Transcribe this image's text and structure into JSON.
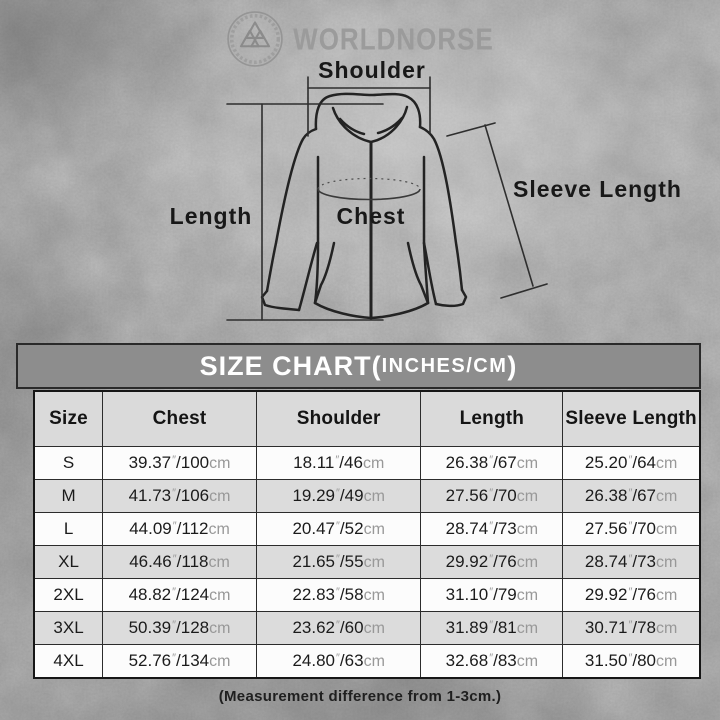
{
  "brand": {
    "name": "WORLDNORSE",
    "logo": "valknut-icon"
  },
  "diagram": {
    "labels": {
      "shoulder": "Shoulder",
      "length": "Length",
      "chest": "Chest",
      "sleeve_length": "Sleeve Length"
    }
  },
  "size_chart": {
    "title_main": "SIZE CHART(",
    "title_sub": "INCHES/CM",
    "title_close": ")",
    "columns": [
      "Size",
      "Chest",
      "Shoulder",
      "Length",
      "Sleeve Length"
    ],
    "inch_mark": "″",
    "cm_suffix": "cm",
    "rows": [
      {
        "size": "S",
        "measures": [
          {
            "in": "39.37",
            "cm": "100"
          },
          {
            "in": "18.11",
            "cm": "46"
          },
          {
            "in": "26.38",
            "cm": "67"
          },
          {
            "in": "25.20",
            "cm": "64"
          }
        ]
      },
      {
        "size": "M",
        "measures": [
          {
            "in": "41.73",
            "cm": "106"
          },
          {
            "in": "19.29",
            "cm": "49"
          },
          {
            "in": "27.56",
            "cm": "70"
          },
          {
            "in": "26.38",
            "cm": "67"
          }
        ]
      },
      {
        "size": "L",
        "measures": [
          {
            "in": "44.09",
            "cm": "112"
          },
          {
            "in": "20.47",
            "cm": "52"
          },
          {
            "in": "28.74",
            "cm": "73"
          },
          {
            "in": "27.56",
            "cm": "70"
          }
        ]
      },
      {
        "size": "XL",
        "measures": [
          {
            "in": "46.46",
            "cm": "118"
          },
          {
            "in": "21.65",
            "cm": "55"
          },
          {
            "in": "29.92",
            "cm": "76"
          },
          {
            "in": "28.74",
            "cm": "73"
          }
        ]
      },
      {
        "size": "2XL",
        "measures": [
          {
            "in": "48.82",
            "cm": "124"
          },
          {
            "in": "22.83",
            "cm": "58"
          },
          {
            "in": "31.10",
            "cm": "79"
          },
          {
            "in": "29.92",
            "cm": "76"
          }
        ]
      },
      {
        "size": "3XL",
        "measures": [
          {
            "in": "50.39",
            "cm": "128"
          },
          {
            "in": "23.62",
            "cm": "60"
          },
          {
            "in": "31.89",
            "cm": "81"
          },
          {
            "in": "30.71",
            "cm": "78"
          }
        ]
      },
      {
        "size": "4XL",
        "measures": [
          {
            "in": "52.76",
            "cm": "134"
          },
          {
            "in": "24.80",
            "cm": "63"
          },
          {
            "in": "32.68",
            "cm": "83"
          },
          {
            "in": "31.50",
            "cm": "80"
          }
        ]
      }
    ],
    "footnote": "(Measurement difference from 1-3cm.)"
  },
  "colors": {
    "title_bar_bg": "#8d8d8d",
    "title_text": "#ffffff",
    "header_row_bg": "#dadada",
    "row_bg": "#fcfcfc",
    "row_alt_bg": "#dcdcdc",
    "unit_text": "#989898",
    "ink": "#1b1b1b",
    "brand_grey": "#9b9b9b"
  },
  "chart_data": {
    "type": "table",
    "title": "SIZE CHART(INCHES/CM)",
    "columns": [
      "Size",
      "Chest",
      "Shoulder",
      "Length",
      "Sleeve Length"
    ],
    "rows": [
      [
        "S",
        "39.37″/100cm",
        "18.11″/46cm",
        "26.38″/67cm",
        "25.20″/64cm"
      ],
      [
        "M",
        "41.73″/106cm",
        "19.29″/49cm",
        "27.56″/70cm",
        "26.38″/67cm"
      ],
      [
        "L",
        "44.09″/112cm",
        "20.47″/52cm",
        "28.74″/73cm",
        "27.56″/70cm"
      ],
      [
        "XL",
        "46.46″/118cm",
        "21.65″/55cm",
        "29.92″/76cm",
        "28.74″/73cm"
      ],
      [
        "2XL",
        "48.82″/124cm",
        "22.83″/58cm",
        "31.10″/79cm",
        "29.92″/76cm"
      ],
      [
        "3XL",
        "50.39″/128cm",
        "23.62″/60cm",
        "31.89″/81cm",
        "30.71″/78cm"
      ],
      [
        "4XL",
        "52.76″/134cm",
        "24.80″/63cm",
        "32.68″/83cm",
        "31.50″/80cm"
      ]
    ],
    "footnote": "(Measurement difference from 1-3cm.)"
  }
}
